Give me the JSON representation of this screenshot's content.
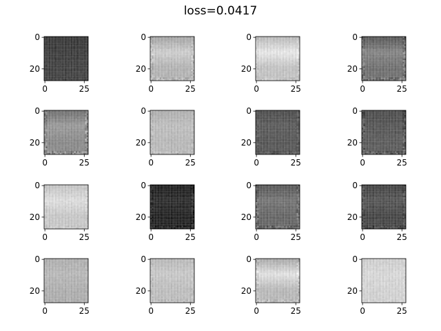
{
  "figure": {
    "title": "loss=0.0417"
  },
  "chart_data": {
    "type": "heatmap",
    "title": "loss=0.0417",
    "layout": "4x4 grid of generated image samples",
    "colormap": "gray",
    "grid": false,
    "image_size": [
      28,
      28
    ],
    "xlim": [
      -0.5,
      27.5
    ],
    "ylim": [
      27.5,
      -0.5
    ],
    "x_ticks": [
      "0",
      "25"
    ],
    "y_ticks": [
      "0",
      "20"
    ],
    "panels": [
      {
        "index": 1,
        "base_tone": 0.24,
        "top_tone": 0.22,
        "band_tone": 0.24,
        "bottom_tone": 0.26,
        "edge_noise": 0.04
      },
      {
        "index": 2,
        "base_tone": 0.72,
        "top_tone": 0.64,
        "band_tone": 0.8,
        "bottom_tone": 0.7,
        "edge_noise": 0.1
      },
      {
        "index": 3,
        "base_tone": 0.78,
        "top_tone": 0.72,
        "band_tone": 0.9,
        "bottom_tone": 0.76,
        "edge_noise": 0.06
      },
      {
        "index": 4,
        "base_tone": 0.4,
        "top_tone": 0.34,
        "band_tone": 0.52,
        "bottom_tone": 0.44,
        "edge_noise": 0.14
      },
      {
        "index": 5,
        "base_tone": 0.52,
        "top_tone": 0.44,
        "band_tone": 0.6,
        "bottom_tone": 0.54,
        "edge_noise": 0.16
      },
      {
        "index": 6,
        "base_tone": 0.7,
        "top_tone": 0.68,
        "band_tone": 0.74,
        "bottom_tone": 0.72,
        "edge_noise": 0.06
      },
      {
        "index": 7,
        "base_tone": 0.32,
        "top_tone": 0.3,
        "band_tone": 0.36,
        "bottom_tone": 0.34,
        "edge_noise": 0.08
      },
      {
        "index": 8,
        "base_tone": 0.32,
        "top_tone": 0.3,
        "band_tone": 0.34,
        "bottom_tone": 0.36,
        "edge_noise": 0.14
      },
      {
        "index": 9,
        "base_tone": 0.8,
        "top_tone": 0.76,
        "band_tone": 0.86,
        "bottom_tone": 0.78,
        "edge_noise": 0.05
      },
      {
        "index": 10,
        "base_tone": 0.14,
        "top_tone": 0.12,
        "band_tone": 0.18,
        "bottom_tone": 0.14,
        "edge_noise": 0.1
      },
      {
        "index": 11,
        "base_tone": 0.38,
        "top_tone": 0.34,
        "band_tone": 0.46,
        "bottom_tone": 0.4,
        "edge_noise": 0.14
      },
      {
        "index": 12,
        "base_tone": 0.28,
        "top_tone": 0.26,
        "band_tone": 0.34,
        "bottom_tone": 0.28,
        "edge_noise": 0.1
      },
      {
        "index": 13,
        "base_tone": 0.68,
        "top_tone": 0.68,
        "band_tone": 0.72,
        "bottom_tone": 0.68,
        "edge_noise": 0.03
      },
      {
        "index": 14,
        "base_tone": 0.74,
        "top_tone": 0.72,
        "band_tone": 0.78,
        "bottom_tone": 0.74,
        "edge_noise": 0.06
      },
      {
        "index": 15,
        "base_tone": 0.76,
        "top_tone": 0.66,
        "band_tone": 0.88,
        "bottom_tone": 0.72,
        "edge_noise": 0.1
      },
      {
        "index": 16,
        "base_tone": 0.8,
        "top_tone": 0.8,
        "band_tone": 0.84,
        "bottom_tone": 0.82,
        "edge_noise": 0.04
      }
    ]
  }
}
